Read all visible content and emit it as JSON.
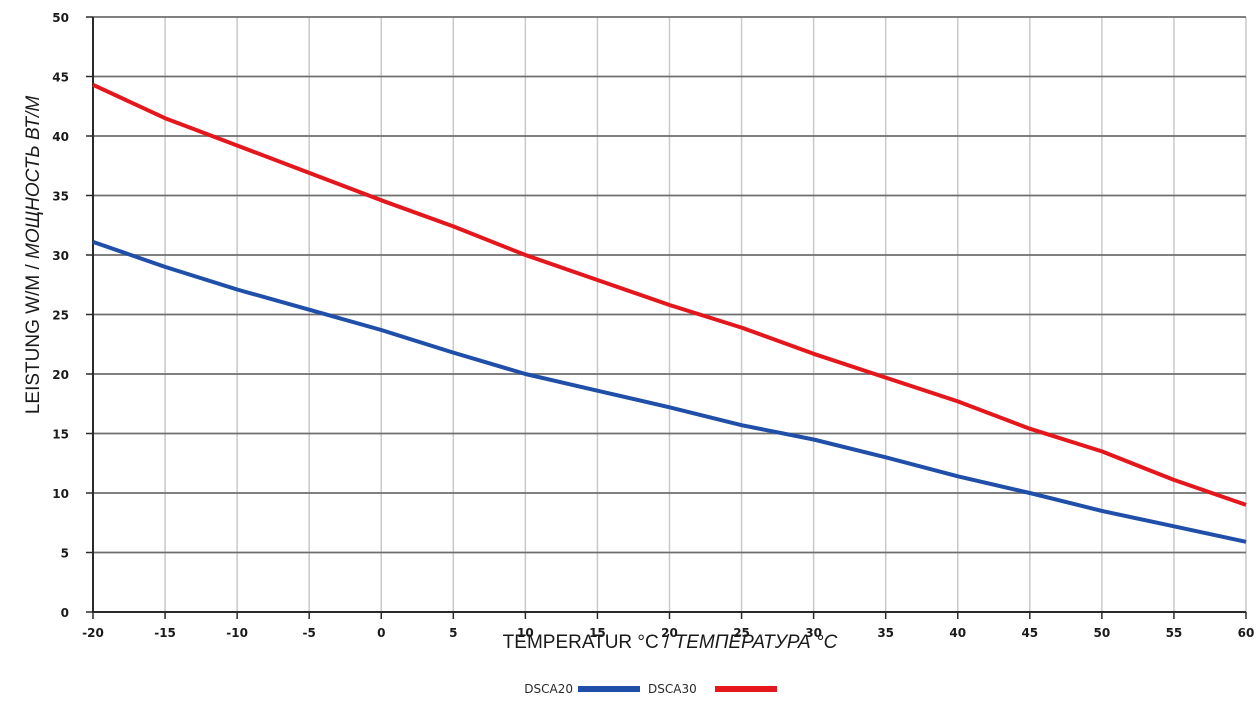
{
  "chart_data": {
    "type": "line",
    "title": "",
    "xlabel": "TEMPERATUR °C / ТЕМПЕРАТУРА °C",
    "xlabel_parts": [
      "TEMPERATUR °C / ",
      "ТЕМПЕРАТУРА °C"
    ],
    "ylabel": "LEISTUNG W/M / МОЩНОСТЬ ВТ/М",
    "ylabel_parts": [
      "LEISTUNG W/M / ",
      "МОЩНОСТЬ ВТ/М"
    ],
    "xlim": [
      -20,
      60
    ],
    "ylim": [
      0,
      50
    ],
    "x_ticks": [
      -20,
      -15,
      -10,
      -5,
      0,
      5,
      10,
      15,
      20,
      25,
      30,
      35,
      40,
      45,
      50,
      55,
      60
    ],
    "y_ticks": [
      0,
      5,
      10,
      15,
      20,
      25,
      30,
      35,
      40,
      45,
      50
    ],
    "grid": true,
    "legend_position": "bottom-center",
    "series": [
      {
        "name": "DSCA20",
        "color": "#1f4fa8",
        "x": [
          -20,
          -15,
          -10,
          -5,
          0,
          5,
          10,
          15,
          20,
          25,
          30,
          35,
          40,
          45,
          50,
          55,
          60
        ],
        "y": [
          31.1,
          29.0,
          27.1,
          25.4,
          23.7,
          21.8,
          20.0,
          18.6,
          17.2,
          15.7,
          14.5,
          13.0,
          11.4,
          10.0,
          8.5,
          7.2,
          5.9
        ]
      },
      {
        "name": "DSCA30",
        "color": "#e3171c",
        "x": [
          -20,
          -15,
          -10,
          -5,
          0,
          5,
          10,
          15,
          20,
          25,
          30,
          35,
          40,
          45,
          50,
          55,
          60
        ],
        "y": [
          44.3,
          41.5,
          39.2,
          36.9,
          34.6,
          32.4,
          30.0,
          27.9,
          25.8,
          23.9,
          21.7,
          19.7,
          17.7,
          15.4,
          13.5,
          11.1,
          9.0
        ]
      }
    ]
  }
}
